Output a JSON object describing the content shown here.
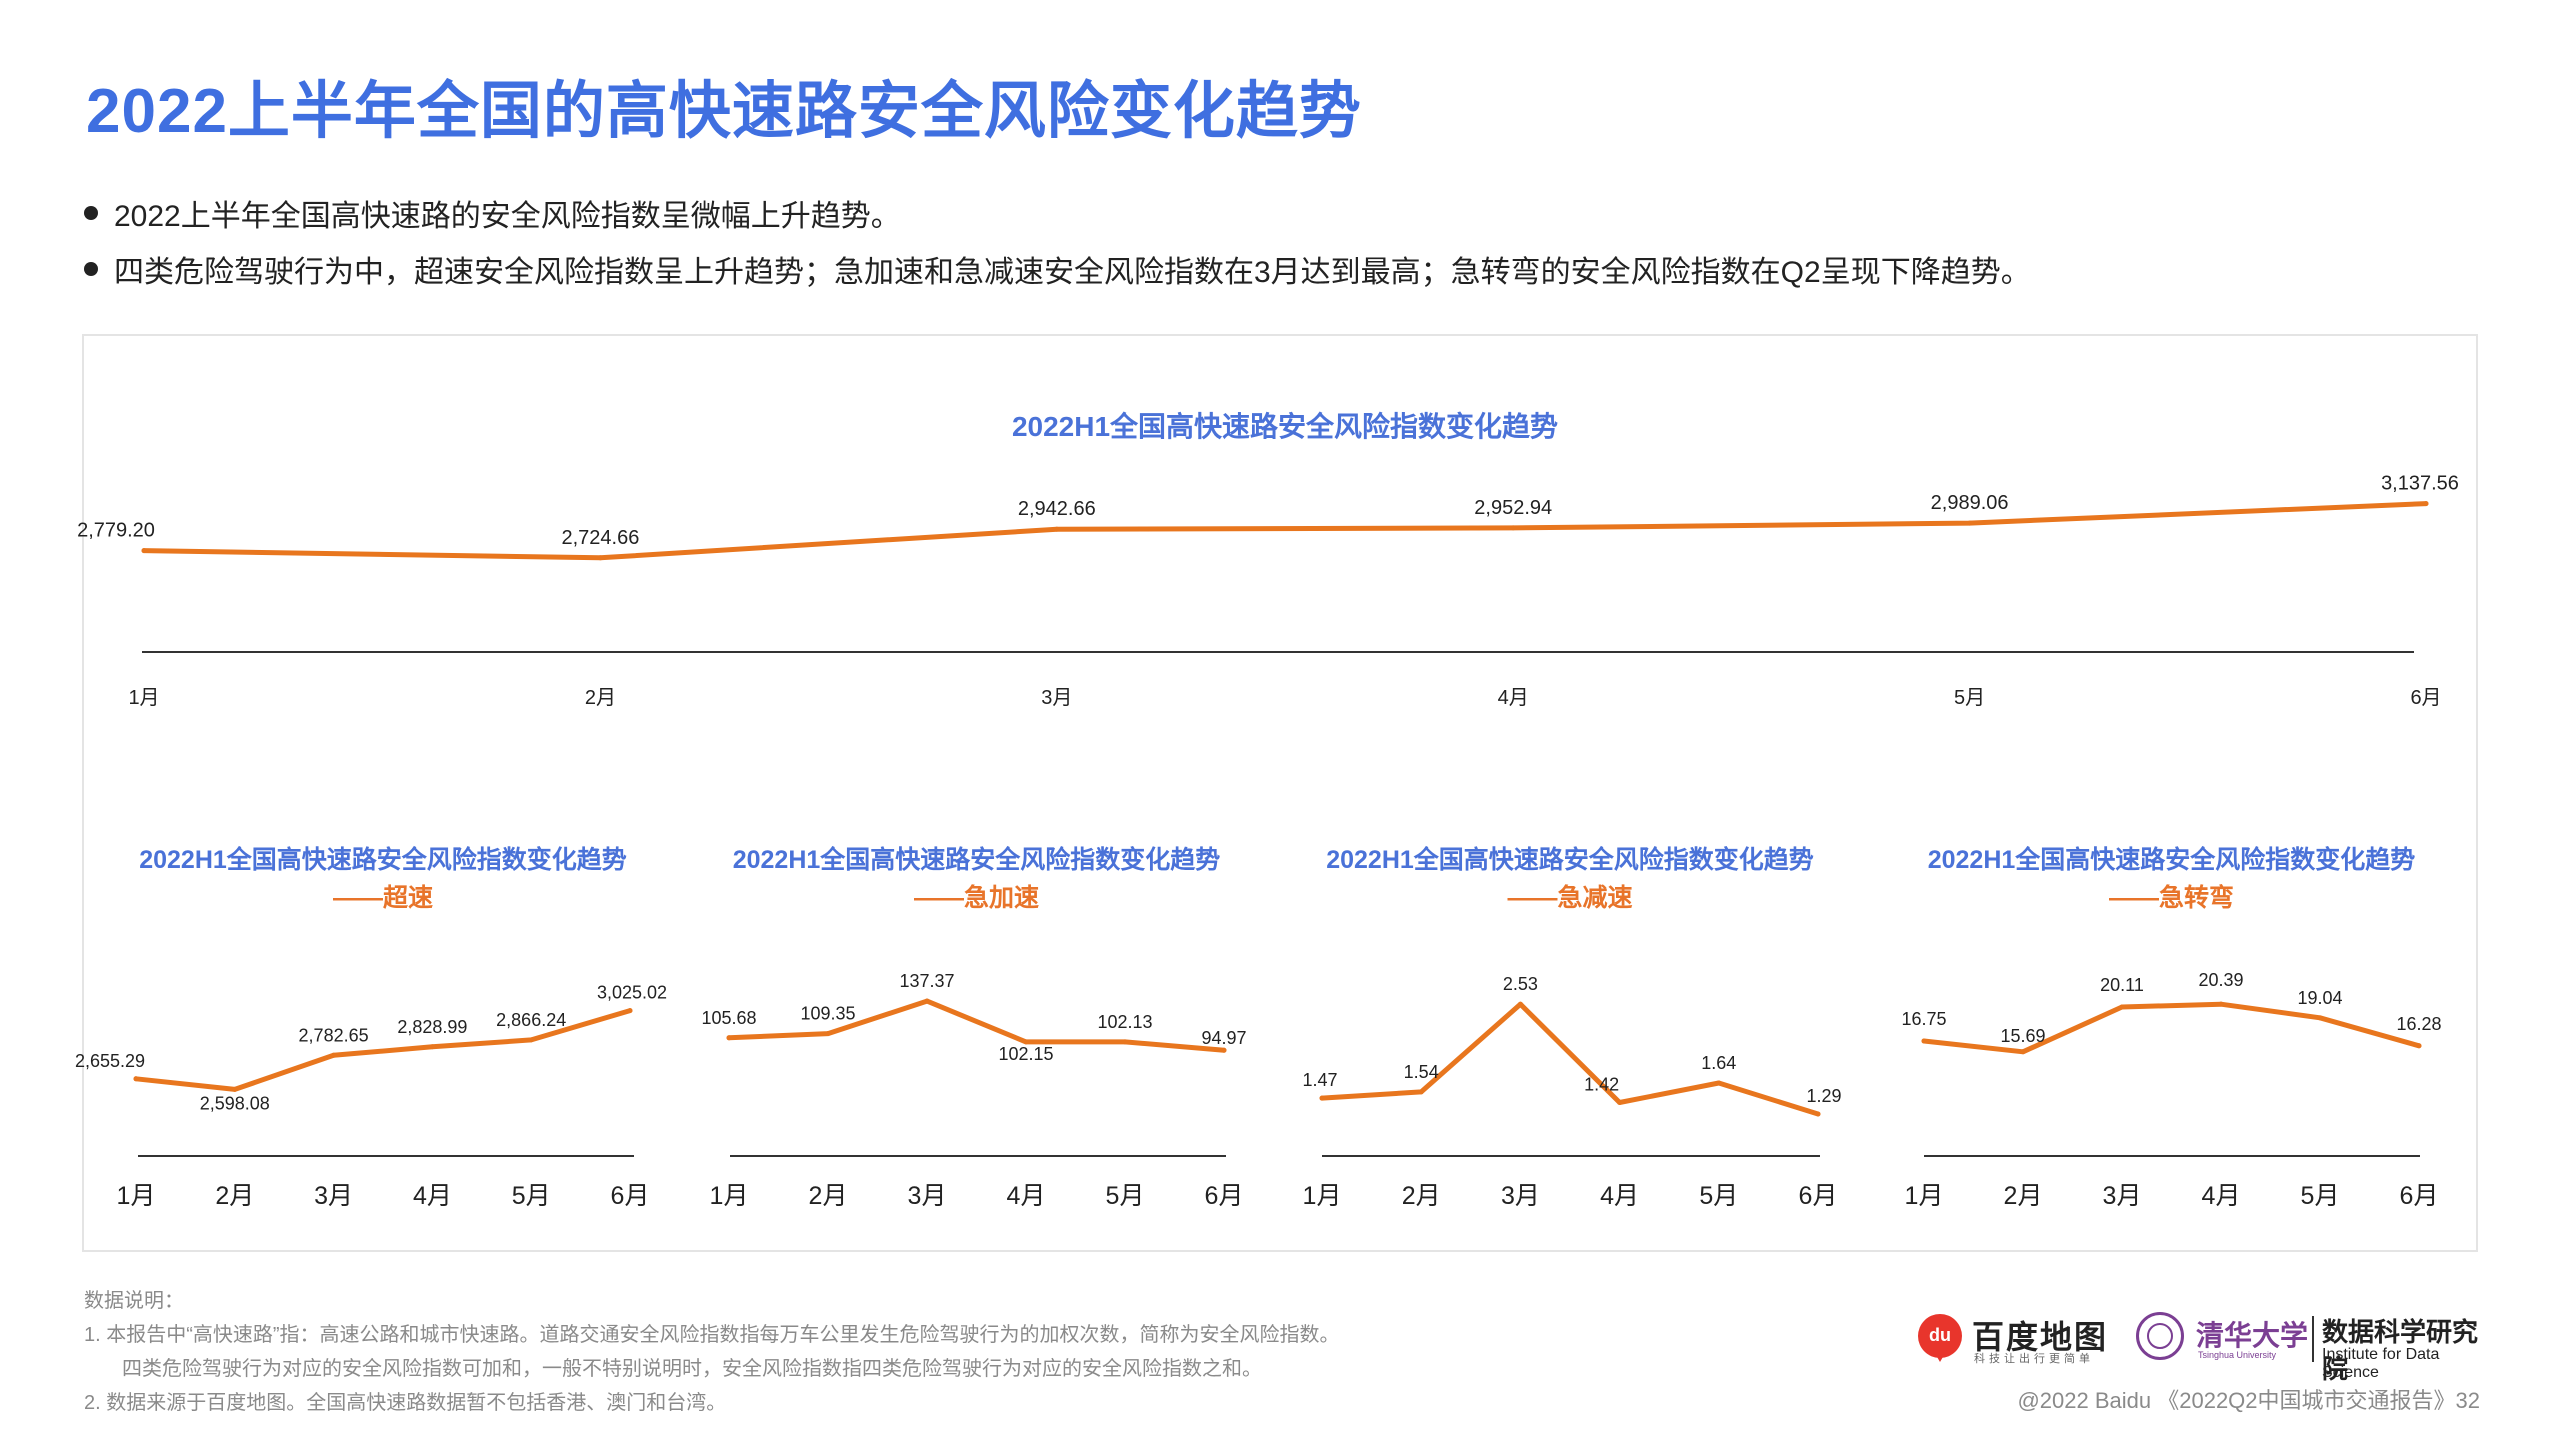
{
  "title": "2022上半年全国的高快速路安全风险变化趋势",
  "bullets": [
    "2022上半年全国高快速路的安全风险指数呈微幅上升趋势。",
    "四类危险驾驶行为中，超速安全风险指数呈上升趋势；急加速和急减速安全风险指数在3月达到最高；急转弯的安全风险指数在Q2呈现下降趋势。"
  ],
  "colors": {
    "title": "#3f6fe0",
    "chart_title": "#4a72d8",
    "subtitle": "#e8742a",
    "line": "#e8761e",
    "axis": "#333333"
  },
  "chart_data": [
    {
      "type": "line",
      "title": "2022H1全国高快速路安全风险指数变化趋势",
      "subtitle": "",
      "categories": [
        "1月",
        "2月",
        "3月",
        "4月",
        "5月",
        "6月"
      ],
      "values": [
        2779.2,
        2724.66,
        2942.66,
        2952.94,
        2989.06,
        3137.56
      ],
      "labels": [
        "2,779.20",
        "2,724.66",
        "2,942.66",
        "2,952.94",
        "2,989.06",
        "3,137.56"
      ],
      "ylim": [
        1900,
        3150
      ],
      "grid": false,
      "legend": "none"
    },
    {
      "type": "line",
      "title": "2022H1全国高快速路安全风险指数变化趋势",
      "subtitle": "——超速",
      "categories": [
        "1月",
        "2月",
        "3月",
        "4月",
        "5月",
        "6月"
      ],
      "values": [
        2655.29,
        2598.08,
        2782.65,
        2828.99,
        2866.24,
        3025.02
      ],
      "labels": [
        "2,655.29",
        "2,598.08",
        "2,782.65",
        "2,828.99",
        "2,866.24",
        "3,025.02"
      ],
      "ylim": [
        2150,
        3050
      ],
      "grid": false,
      "legend": "none"
    },
    {
      "type": "line",
      "title": "2022H1全国高快速路安全风险指数变化趋势",
      "subtitle": "——急加速",
      "categories": [
        "1月",
        "2月",
        "3月",
        "4月",
        "5月",
        "6月"
      ],
      "values": [
        105.68,
        109.35,
        137.37,
        102.15,
        102.13,
        94.97
      ],
      "labels": [
        "105.68",
        "109.35",
        "137.37",
        "102.15",
        "102.13",
        "94.97"
      ],
      "ylim": [
        -10,
        140
      ],
      "grid": false,
      "legend": "none"
    },
    {
      "type": "line",
      "title": "2022H1全国高快速路安全风险指数变化趋势",
      "subtitle": "——急减速",
      "categories": [
        "1月",
        "2月",
        "3月",
        "4月",
        "5月",
        "6月"
      ],
      "values": [
        1.47,
        1.54,
        2.53,
        1.42,
        1.64,
        1.29
      ],
      "labels": [
        "1.47",
        "1.54",
        "2.53",
        "1.42",
        "1.64",
        "1.29"
      ],
      "ylim": [
        0.5,
        2.6
      ],
      "grid": false,
      "legend": "none"
    },
    {
      "type": "line",
      "title": "2022H1全国高快速路安全风险指数变化趋势",
      "subtitle": "——急转弯",
      "categories": [
        "1月",
        "2月",
        "3月",
        "4月",
        "5月",
        "6月"
      ],
      "values": [
        16.75,
        15.69,
        20.11,
        20.39,
        19.04,
        16.28
      ],
      "labels": [
        "16.75",
        "15.69",
        "20.11",
        "20.39",
        "19.04",
        "16.28"
      ],
      "ylim": [
        5,
        21
      ],
      "grid": false,
      "legend": "none"
    }
  ],
  "notes": {
    "heading": "数据说明：",
    "items": [
      "1.   本报告中“高快速路”指：高速公路和城市快速路。道路交通安全风险指数指每万车公里发生危险驾驶行为的加权次数，简称为安全风险指数。",
      "四类危险驾驶行为对应的安全风险指数可加和，一般不特别说明时，安全风险指数指四类危险驾驶行为对应的安全风险指数之和。",
      "2.   数据来源于百度地图。全国高快速路数据暂不包括香港、澳门和台湾。"
    ]
  },
  "footer": "@2022 Baidu 《2022Q2中国城市交通报告》32",
  "logos": {
    "baidu": {
      "mark": "du",
      "name": "百度地图",
      "slogan": "科技让出行更简单"
    },
    "tsinghua": {
      "cn": "清华大学",
      "en": "Tsinghua University",
      "inst_cn": "数据科学研究院",
      "inst_en": "Institute for Data Science"
    }
  }
}
